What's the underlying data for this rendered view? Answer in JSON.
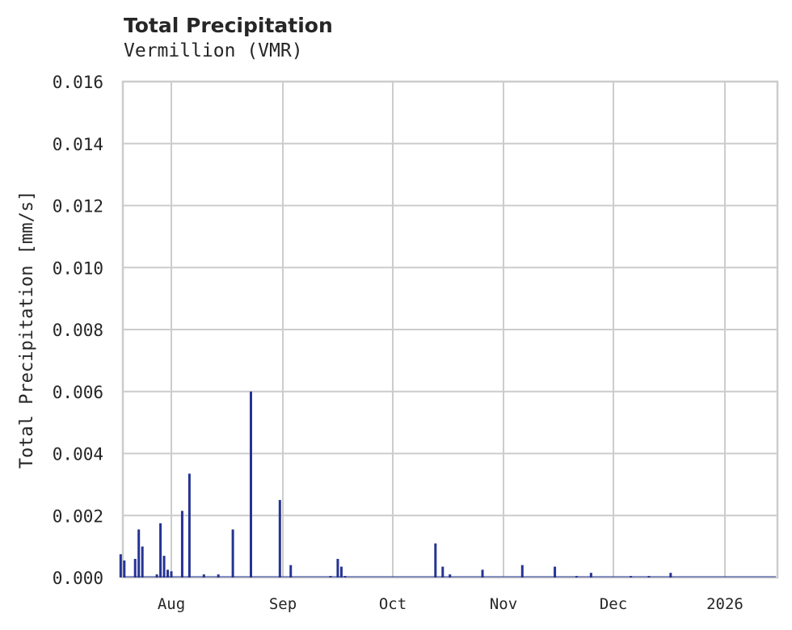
{
  "chart_data": {
    "type": "bar",
    "title": "Total Precipitation",
    "subtitle": "Vermillion (VMR)",
    "xlabel": "",
    "ylabel": "Total Precipitation [mm/s]",
    "ylim": [
      0,
      0.016
    ],
    "yticks": [
      "0.000",
      "0.002",
      "0.004",
      "0.006",
      "0.008",
      "0.010",
      "0.012",
      "0.014",
      "0.016"
    ],
    "xticks": [
      "Aug",
      "Sep",
      "Oct",
      "Nov",
      "Dec",
      "2026"
    ],
    "grid": true,
    "legend": null,
    "series_color": "#253494",
    "series": [
      {
        "name": "Total Precipitation",
        "points": [
          {
            "date": "2025-07-18",
            "value": 0.00075
          },
          {
            "date": "2025-07-19",
            "value": 0.00055
          },
          {
            "date": "2025-07-22",
            "value": 0.0006
          },
          {
            "date": "2025-07-23",
            "value": 0.00155
          },
          {
            "date": "2025-07-24",
            "value": 0.001
          },
          {
            "date": "2025-07-28",
            "value": 0.0001
          },
          {
            "date": "2025-07-29",
            "value": 0.00175
          },
          {
            "date": "2025-07-30",
            "value": 0.0007
          },
          {
            "date": "2025-07-31",
            "value": 0.00025
          },
          {
            "date": "2025-08-01",
            "value": 0.0002
          },
          {
            "date": "2025-08-04",
            "value": 0.00215
          },
          {
            "date": "2025-08-06",
            "value": 0.00335
          },
          {
            "date": "2025-08-10",
            "value": 0.0001
          },
          {
            "date": "2025-08-14",
            "value": 0.0001
          },
          {
            "date": "2025-08-18",
            "value": 0.00155
          },
          {
            "date": "2025-08-23",
            "value": 0.006
          },
          {
            "date": "2025-08-31",
            "value": 0.0025
          },
          {
            "date": "2025-09-03",
            "value": 0.0004
          },
          {
            "date": "2025-09-14",
            "value": 5e-05
          },
          {
            "date": "2025-09-16",
            "value": 0.0006
          },
          {
            "date": "2025-09-17",
            "value": 0.00035
          },
          {
            "date": "2025-09-18",
            "value": 5e-05
          },
          {
            "date": "2025-10-13",
            "value": 0.0011
          },
          {
            "date": "2025-10-15",
            "value": 0.00035
          },
          {
            "date": "2025-10-17",
            "value": 0.0001
          },
          {
            "date": "2025-10-26",
            "value": 0.00025
          },
          {
            "date": "2025-11-06",
            "value": 0.0004
          },
          {
            "date": "2025-11-15",
            "value": 0.00035
          },
          {
            "date": "2025-11-21",
            "value": 5e-05
          },
          {
            "date": "2025-11-25",
            "value": 0.00015
          },
          {
            "date": "2025-12-06",
            "value": 5e-05
          },
          {
            "date": "2025-12-11",
            "value": 5e-05
          },
          {
            "date": "2025-12-17",
            "value": 0.00015
          }
        ]
      }
    ]
  }
}
